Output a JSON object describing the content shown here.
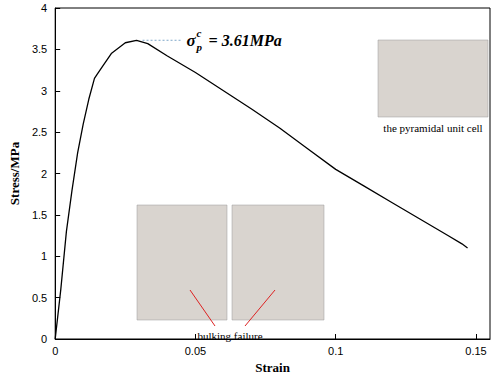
{
  "chart_data": {
    "type": "line",
    "x_label": "Strain",
    "y_label": "Stress/MPa",
    "x": [
      0,
      0.002,
      0.004,
      0.006,
      0.008,
      0.01,
      0.012,
      0.014,
      0.015,
      0.017,
      0.02,
      0.025,
      0.029,
      0.033,
      0.04,
      0.05,
      0.06,
      0.07,
      0.08,
      0.09,
      0.1,
      0.11,
      0.12,
      0.13,
      0.14,
      0.145,
      0.147
    ],
    "values": [
      0,
      0.6,
      1.3,
      1.8,
      2.25,
      2.6,
      2.9,
      3.15,
      3.2,
      3.3,
      3.45,
      3.58,
      3.61,
      3.57,
      3.42,
      3.22,
      3.0,
      2.78,
      2.55,
      2.3,
      2.05,
      1.85,
      1.65,
      1.45,
      1.25,
      1.15,
      1.1
    ],
    "color": "#000000",
    "line_style": "solid",
    "marker": "none",
    "xlim": [
      0,
      0.155
    ],
    "xticks": [
      0,
      0.05,
      0.1,
      0.15
    ],
    "ylim": [
      0,
      4
    ],
    "yticks": [
      0,
      0.5,
      1,
      1.5,
      2,
      2.5,
      3,
      3.5,
      4
    ],
    "grid": false,
    "annotation": {
      "symbol": "σ",
      "superscript": "c",
      "subscript": "p",
      "text": " = 3.61MPa",
      "x": 0.029,
      "y": 3.61
    },
    "insets": [
      {
        "label": "the pyramidal unit cell"
      },
      {
        "label": "bulking failure"
      }
    ]
  }
}
